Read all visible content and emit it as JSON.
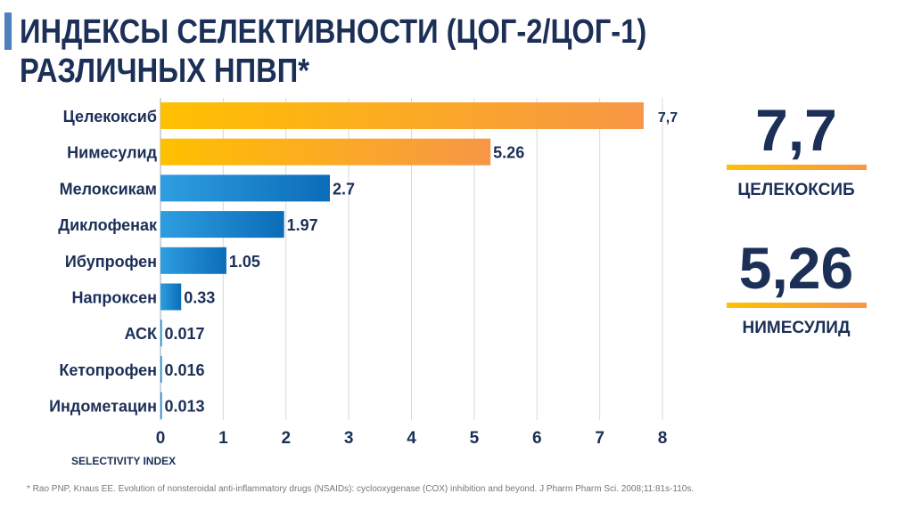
{
  "title": "ИНДЕКСЫ СЕЛЕКТИВНОСТИ (ЦОГ-2/ЦОГ-1) РАЗЛИЧНЫХ НПВП*",
  "highlights": [
    {
      "value": "7,7",
      "label": "ЦЕЛЕКОКСИБ"
    },
    {
      "value": "5,26",
      "label": "НИМЕСУЛИД"
    }
  ],
  "footnote": "* Rao PNP, Knaus EE. Evolution of nonsteroidal anti-inflammatory drugs (NSAIDs): cyclooxygenase (COX) inhibition and beyond. J Pharm Pharm Sci. 2008;11:81s-110s.",
  "colors": {
    "orange_start": "#ffc000",
    "orange_end": "#f79646",
    "blue_start": "#2e9ee0",
    "blue_end": "#0b6cb8",
    "text": "#1b2f57"
  },
  "chart_data": {
    "type": "bar",
    "orientation": "horizontal",
    "categories": [
      "Целекоксиб",
      "Нимесулид",
      "Мелоксикам",
      "Диклофенак",
      "Ибупрофен",
      "Напроксен",
      "АСК",
      "Кетопрофен",
      "Индометацин"
    ],
    "values": [
      7.7,
      5.26,
      2.7,
      1.97,
      1.05,
      0.33,
      0.017,
      0.016,
      0.013
    ],
    "data_labels": [
      "7,7",
      "5.26",
      "2.7",
      "1.97",
      "1.05",
      "0.33",
      "0.017",
      "0.016",
      "0.013"
    ],
    "bar_colors": [
      "orange",
      "orange",
      "blue",
      "blue",
      "blue",
      "blue",
      "blue",
      "blue",
      "blue"
    ],
    "xlabel": "SELECTIVITY INDEX",
    "xlim": [
      0,
      8
    ],
    "xticks": [
      "0",
      "1",
      "2",
      "3",
      "4",
      "5",
      "6",
      "7",
      "8"
    ],
    "grid": "vertical"
  }
}
